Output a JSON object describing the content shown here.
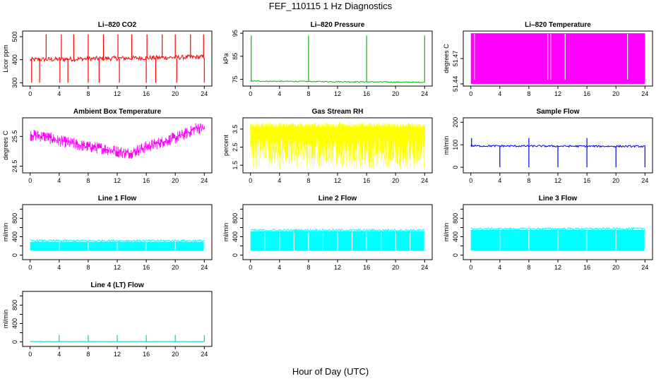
{
  "figure": {
    "title": "FEF_110115  1 Hz Diagnostics",
    "xlabel": "Hour of Day (UTC)"
  },
  "chart_data": [
    {
      "type": "line",
      "title": "Li–820 CO2",
      "ylabel": "Licor ppm",
      "color": "#ff0000",
      "xlim": [
        0,
        24
      ],
      "ylim": [
        295,
        515
      ],
      "xticks": [
        0,
        4,
        8,
        12,
        16,
        20,
        24
      ],
      "yticks": [
        300,
        400,
        500
      ],
      "pattern": {
        "base": [
          400,
          412
        ],
        "noise": 10,
        "spikes_up": [
          2.2,
          4.3,
          6.0,
          8.0,
          10.1,
          12.1,
          14.0,
          16.1,
          18.2,
          20.0,
          22.1,
          23.9
        ],
        "spike_up_value": 510,
        "spikes_down": [
          0.2,
          1.3,
          4.1,
          5.2,
          8.0,
          9.5,
          12.3,
          16.0,
          17.3,
          20.2,
          24.0
        ],
        "spike_down_value": 300
      }
    },
    {
      "type": "line",
      "title": "Li–820 Pressure",
      "ylabel": "kPa",
      "color": "#00bb00",
      "xlim": [
        0,
        24
      ],
      "ylim": [
        73,
        95
      ],
      "xticks": [
        0,
        4,
        8,
        12,
        16,
        20,
        24
      ],
      "yticks": [
        75,
        85,
        95
      ],
      "pattern": {
        "base": [
          74.2,
          73.7
        ],
        "noise": 0.2,
        "spikes_up": [
          0.1,
          8.0,
          16.0,
          24.0
        ],
        "spike_up_value": 94,
        "spikes_down": [],
        "spike_down_value": 73
      }
    },
    {
      "type": "area",
      "title": "Li–820 Temperature",
      "ylabel": "degrees C",
      "color": "#ff00ff",
      "xlim": [
        0,
        24
      ],
      "ylim": [
        51.44,
        51.5
      ],
      "xticks": [
        0,
        4,
        8,
        12,
        16,
        20,
        24
      ],
      "yticks": [
        51.44,
        51.47
      ],
      "ytick_labels": [
        "51.44",
        "51.47"
      ],
      "pattern": {
        "band": [
          51.44,
          51.5
        ],
        "gaps": [
          0.5,
          10.6,
          11.0,
          13.0,
          21.6
        ]
      }
    },
    {
      "type": "line",
      "title": "Ambient Box Temperature",
      "ylabel": "degrees C",
      "color": "#ff00ff",
      "xlim": [
        0,
        24
      ],
      "ylim": [
        24.35,
        26.05
      ],
      "xticks": [
        0,
        4,
        8,
        12,
        16,
        20,
        24
      ],
      "yticks": [
        24.5,
        25.5
      ],
      "ytick_labels": [
        "24.5",
        "25.5"
      ],
      "pattern": {
        "curve_x": [
          0,
          2,
          4,
          6,
          8,
          10,
          12,
          13,
          14,
          15,
          16,
          18,
          20,
          22,
          23,
          24
        ],
        "curve_y": [
          25.55,
          25.5,
          25.35,
          25.25,
          25.15,
          25.1,
          25.0,
          24.95,
          24.95,
          25.05,
          25.15,
          25.3,
          25.45,
          25.65,
          25.8,
          25.75
        ],
        "noise": 0.2
      }
    },
    {
      "type": "line",
      "title": "Gas Stream RH",
      "ylabel": "percent",
      "color": "#ffff00",
      "xlim": [
        0,
        24
      ],
      "ylim": [
        1.2,
        4.0
      ],
      "xticks": [
        0,
        4,
        8,
        12,
        16,
        20,
        24
      ],
      "yticks": [
        1.5,
        2.5,
        3.5
      ],
      "ytick_labels": [
        "1.5",
        "2.5",
        "3.5"
      ],
      "pattern": {
        "band": [
          1.3,
          3.85
        ],
        "dense_top": 3.0
      }
    },
    {
      "type": "line",
      "title": "Sample Flow",
      "ylabel": "ml/min",
      "color": "#0000ee",
      "xlim": [
        0,
        24
      ],
      "ylim": [
        -15,
        210
      ],
      "xticks": [
        0,
        4,
        8,
        12,
        16,
        20,
        24
      ],
      "yticks": [
        0,
        100,
        200
      ],
      "pattern": {
        "base": [
          95,
          93
        ],
        "noise": 4,
        "spikes_up": [
          0.1,
          8.0,
          16.0
        ],
        "spike_up_value": 130,
        "spikes_down": [
          4.0,
          8.0,
          12.0,
          16.0,
          20.0,
          24.0
        ],
        "spike_down_value": 0
      }
    },
    {
      "type": "area",
      "title": "Line 1 Flow",
      "ylabel": "ml/min",
      "color": "#00ffff",
      "xlim": [
        0,
        24
      ],
      "ylim": [
        -50,
        1050
      ],
      "xticks": [
        0,
        4,
        8,
        12,
        16,
        20,
        24
      ],
      "yticks": [
        0,
        200,
        400,
        600,
        800,
        1000
      ],
      "ytick_labels": [
        "0",
        "400",
        "800"
      ],
      "pattern": {
        "band": [
          100,
          290
        ],
        "gaps": [
          4.0,
          8.0,
          12.0,
          16.0,
          20.0,
          24.0
        ]
      }
    },
    {
      "type": "area",
      "title": "Line 2 Flow",
      "ylabel": "ml/min",
      "color": "#00ffff",
      "xlim": [
        0,
        24
      ],
      "ylim": [
        -50,
        1050
      ],
      "xticks": [
        0,
        4,
        8,
        12,
        16,
        20,
        24
      ],
      "yticks": [
        0,
        200,
        400,
        600,
        800,
        1000
      ],
      "ytick_labels": [
        "0",
        "400",
        "800"
      ],
      "pattern": {
        "band": [
          100,
          520
        ],
        "gaps": [
          2.0,
          4.0,
          6.0,
          8.0,
          10.0,
          12.0,
          14.0,
          16.0,
          18.0,
          20.0,
          22.0,
          24.0
        ]
      }
    },
    {
      "type": "area",
      "title": "Line 3 Flow",
      "ylabel": "ml/min",
      "color": "#00ffff",
      "xlim": [
        0,
        24
      ],
      "ylim": [
        -50,
        1050
      ],
      "xticks": [
        0,
        4,
        8,
        12,
        16,
        20,
        24
      ],
      "yticks": [
        0,
        200,
        400,
        600,
        800,
        1000
      ],
      "ytick_labels": [
        "0",
        "400",
        "800"
      ],
      "pattern": {
        "band": [
          100,
          550
        ],
        "gaps": [
          4.0,
          8.0,
          12.0,
          16.0,
          20.0,
          24.0
        ]
      }
    },
    {
      "type": "line",
      "title": "Line 4 (LT) Flow",
      "ylabel": "ml/min",
      "color": "#00cccc",
      "xlim": [
        0,
        24
      ],
      "ylim": [
        -50,
        1050
      ],
      "xticks": [
        0,
        4,
        8,
        12,
        16,
        20,
        24
      ],
      "yticks": [
        0,
        200,
        400,
        600,
        800,
        1000
      ],
      "ytick_labels": [
        "0",
        "400",
        "800"
      ],
      "pattern": {
        "base": [
          8,
          8
        ],
        "noise": 2,
        "spikes_up": [
          4.0,
          8.0,
          12.0,
          16.0,
          20.0,
          24.0
        ],
        "spike_up_value": 150,
        "spikes_down": [],
        "spike_down_value": 0
      }
    }
  ]
}
